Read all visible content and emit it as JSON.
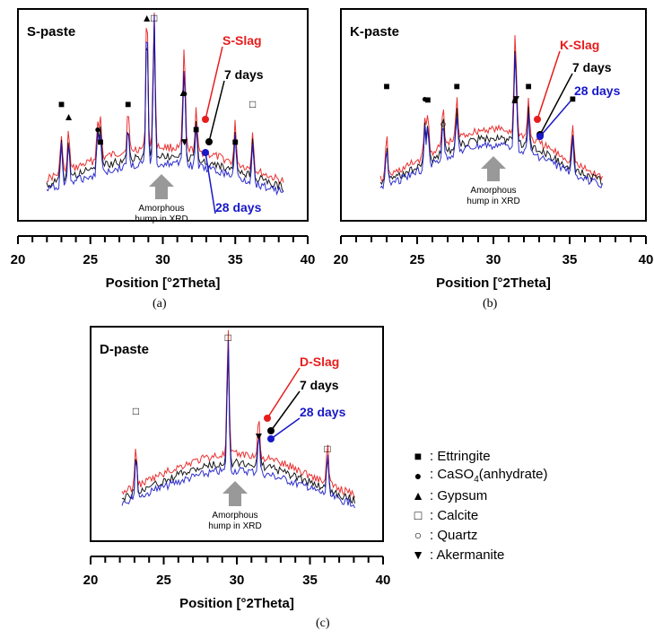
{
  "chart_data": [
    {
      "type": "line",
      "panel": "(a)",
      "paste_label": "S-paste",
      "xlabel": "Position [°2Theta]",
      "xlim": [
        20,
        40
      ],
      "x_ticks": [
        "20",
        "25",
        "30",
        "35",
        "40"
      ],
      "series": [
        {
          "name": "S-Slag",
          "color": "#e81c1c"
        },
        {
          "name": "7 days",
          "color": "#000000"
        },
        {
          "name": "28 days",
          "color": "#1818c8"
        }
      ],
      "peaks": [
        {
          "symbol": "ettringite",
          "x": 23.0
        },
        {
          "symbol": "gypsum",
          "x": 23.5
        },
        {
          "symbol": "caso4",
          "x": 25.5
        },
        {
          "symbol": "ettringite",
          "x": 25.7
        },
        {
          "symbol": "ettringite",
          "x": 27.6
        },
        {
          "symbol": "gypsum",
          "x": 28.9
        },
        {
          "symbol": "calcite",
          "x": 29.4
        },
        {
          "symbol": "akermanite",
          "x": 31.5
        },
        {
          "symbol": "gypsum",
          "x": 31.4
        },
        {
          "symbol": "caso4",
          "x": 31.5
        },
        {
          "symbol": "ettringite",
          "x": 32.3
        },
        {
          "symbol": "ettringite",
          "x": 35.0
        },
        {
          "symbol": "calcite",
          "x": 36.2
        }
      ],
      "annotation": [
        "Amorphous",
        "hump in XRD"
      ]
    },
    {
      "type": "line",
      "panel": "(b)",
      "paste_label": "K-paste",
      "xlabel": "Position [°2Theta]",
      "xlim": [
        20,
        40
      ],
      "x_ticks": [
        "20",
        "25",
        "30",
        "35",
        "40"
      ],
      "series": [
        {
          "name": "K-Slag",
          "color": "#e81c1c"
        },
        {
          "name": "7 days",
          "color": "#000000"
        },
        {
          "name": "28 days",
          "color": "#1818c8"
        }
      ],
      "peaks": [
        {
          "symbol": "ettringite",
          "x": 23.0
        },
        {
          "symbol": "caso4",
          "x": 25.5
        },
        {
          "symbol": "ettringite",
          "x": 25.7
        },
        {
          "symbol": "quartz",
          "x": 26.7
        },
        {
          "symbol": "ettringite",
          "x": 27.6
        },
        {
          "symbol": "akermanite",
          "x": 31.5
        },
        {
          "symbol": "gypsum",
          "x": 31.4
        },
        {
          "symbol": "caso4",
          "x": 31.4
        },
        {
          "symbol": "ettringite",
          "x": 32.3
        },
        {
          "symbol": "ettringite",
          "x": 35.2
        }
      ],
      "annotation": [
        "Amorphous",
        "hump in XRD"
      ]
    },
    {
      "type": "line",
      "panel": "(c)",
      "paste_label": "D-paste",
      "xlabel": "Position [°2Theta]",
      "xlim": [
        20,
        40
      ],
      "x_ticks": [
        "20",
        "25",
        "30",
        "35",
        "40"
      ],
      "series": [
        {
          "name": "D-Slag",
          "color": "#e81c1c"
        },
        {
          "name": "7 days",
          "color": "#000000"
        },
        {
          "name": "28 days",
          "color": "#1818c8"
        }
      ],
      "peaks": [
        {
          "symbol": "calcite",
          "x": 23.1
        },
        {
          "symbol": "calcite",
          "x": 29.4
        },
        {
          "symbol": "akermanite",
          "x": 31.5
        },
        {
          "symbol": "calcite",
          "x": 36.2
        }
      ],
      "annotation": [
        "Amorphous",
        "hump in XRD"
      ]
    }
  ],
  "legend": [
    {
      "symbol": "ettringite",
      "glyph": "■",
      "label": "Ettringite"
    },
    {
      "symbol": "caso4",
      "glyph": "●",
      "label": "CaSO",
      "sub": "4",
      "suffix": "(anhydrate)"
    },
    {
      "symbol": "gypsum",
      "glyph": "▲",
      "label": "Gypsum"
    },
    {
      "symbol": "calcite",
      "glyph": "□",
      "label": "Calcite"
    },
    {
      "symbol": "quartz",
      "glyph": "○",
      "label": "Quartz"
    },
    {
      "symbol": "akermanite",
      "glyph": "▼",
      "label": "Akermanite"
    }
  ],
  "legend_separator": ": ",
  "captions": [
    "(a)",
    "(b)",
    "(c)"
  ]
}
